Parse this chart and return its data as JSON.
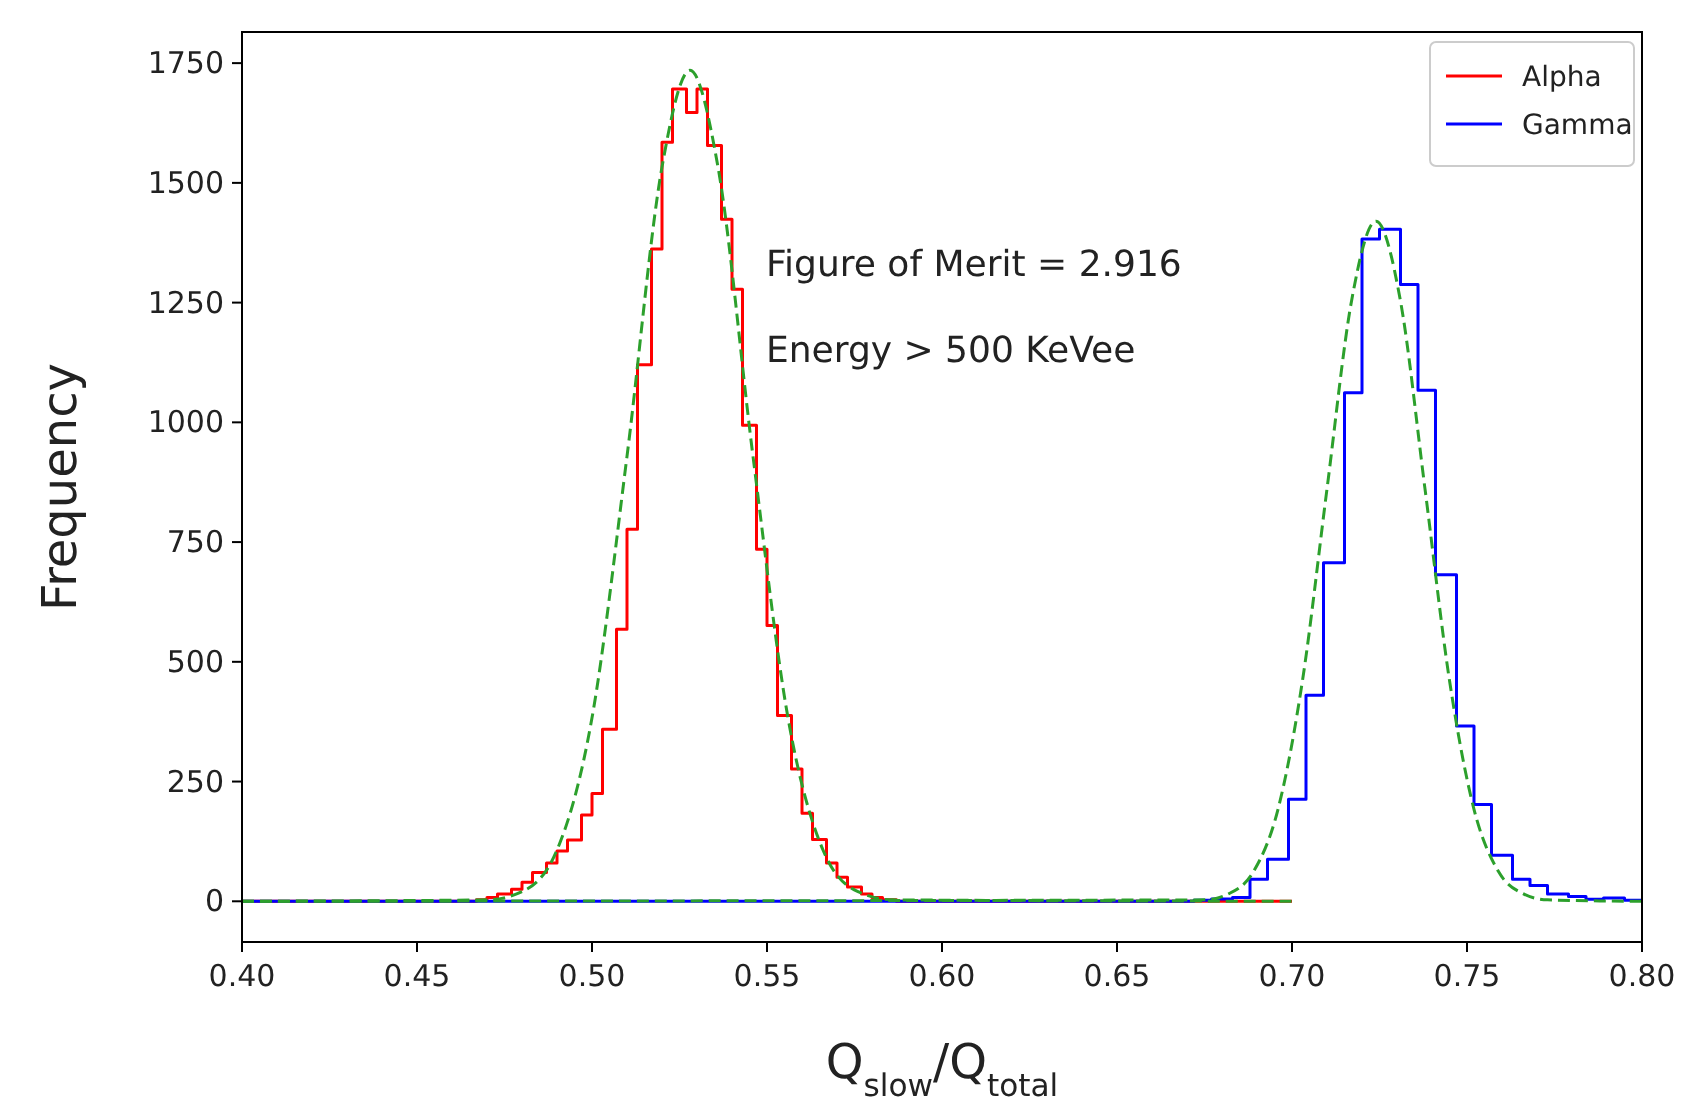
{
  "chart_data": {
    "type": "histogram",
    "xlabel": "Q$_{slow}$/Q$_{total}$",
    "ylabel": "Frequency",
    "xlim": [
      0.4,
      0.8
    ],
    "ylim": [
      -85,
      1815
    ],
    "xticks": [
      {
        "value": 0.4,
        "label": "0.40"
      },
      {
        "value": 0.45,
        "label": "0.45"
      },
      {
        "value": 0.5,
        "label": "0.50"
      },
      {
        "value": 0.55,
        "label": "0.55"
      },
      {
        "value": 0.6,
        "label": "0.60"
      },
      {
        "value": 0.65,
        "label": "0.65"
      },
      {
        "value": 0.7,
        "label": "0.70"
      },
      {
        "value": 0.75,
        "label": "0.75"
      },
      {
        "value": 0.8,
        "label": "0.80"
      }
    ],
    "yticks": [
      0,
      250,
      500,
      750,
      1000,
      1250,
      1500,
      1750
    ],
    "grid": false,
    "legend": "top right",
    "annotations": [
      "Figure of Merit = 2.916",
      "Energy > 500 KeVee"
    ],
    "series": [
      {
        "name": "Alpha",
        "color": "#ff0000",
        "bins": [
          0.4,
          0.467,
          0.47,
          0.473,
          0.477,
          0.48,
          0.483,
          0.487,
          0.49,
          0.493,
          0.497,
          0.5,
          0.503,
          0.507,
          0.51,
          0.513,
          0.517,
          0.52,
          0.523,
          0.527,
          0.53,
          0.533,
          0.537,
          0.54,
          0.543,
          0.547,
          0.55,
          0.553,
          0.557,
          0.56,
          0.563,
          0.567,
          0.57,
          0.573,
          0.577,
          0.58,
          0.583,
          0.587,
          0.7
        ],
        "values": [
          0,
          3,
          8,
          15,
          25,
          40,
          60,
          80,
          105,
          128,
          180,
          225,
          359,
          568,
          777,
          1120,
          1362,
          1585,
          1696,
          1647,
          1696,
          1578,
          1424,
          1278,
          994,
          735,
          576,
          388,
          276,
          184,
          129,
          80,
          50,
          30,
          15,
          8,
          3,
          0
        ]
      },
      {
        "name": "Gamma",
        "color": "#0000ff",
        "bins": [
          0.4,
          0.672,
          0.677,
          0.683,
          0.688,
          0.693,
          0.699,
          0.704,
          0.709,
          0.715,
          0.72,
          0.725,
          0.731,
          0.736,
          0.741,
          0.747,
          0.752,
          0.757,
          0.763,
          0.768,
          0.773,
          0.779,
          0.784,
          0.789,
          0.795,
          0.8
        ],
        "values": [
          0,
          2,
          5,
          8,
          46,
          88,
          213,
          430,
          707,
          1062,
          1383,
          1403,
          1288,
          1067,
          682,
          366,
          202,
          96,
          46,
          33,
          15,
          10,
          4,
          7,
          2
        ]
      },
      {
        "type": "line",
        "color": "#2ca02c",
        "line_style": "dashed",
        "x": [
          0.4,
          0.47,
          0.48,
          0.49,
          0.5,
          0.51,
          0.52,
          0.528,
          0.536,
          0.546,
          0.556,
          0.566,
          0.576,
          0.586,
          0.7
        ],
        "values": [
          0,
          3,
          20,
          107,
          383,
          929,
          1533,
          1735,
          1533,
          929,
          383,
          107,
          20,
          3,
          0
        ]
      },
      {
        "type": "line",
        "color": "#2ca02c",
        "line_style": "dashed",
        "x": [
          0.4,
          0.675,
          0.682,
          0.689,
          0.696,
          0.703,
          0.71,
          0.717,
          0.724,
          0.731,
          0.738,
          0.745,
          0.752,
          0.759,
          0.766,
          0.773,
          0.8
        ],
        "values": [
          0,
          3,
          16,
          62,
          192,
          461,
          861,
          1253,
          1420,
          1253,
          861,
          461,
          192,
          62,
          16,
          3,
          0
        ]
      }
    ]
  }
}
